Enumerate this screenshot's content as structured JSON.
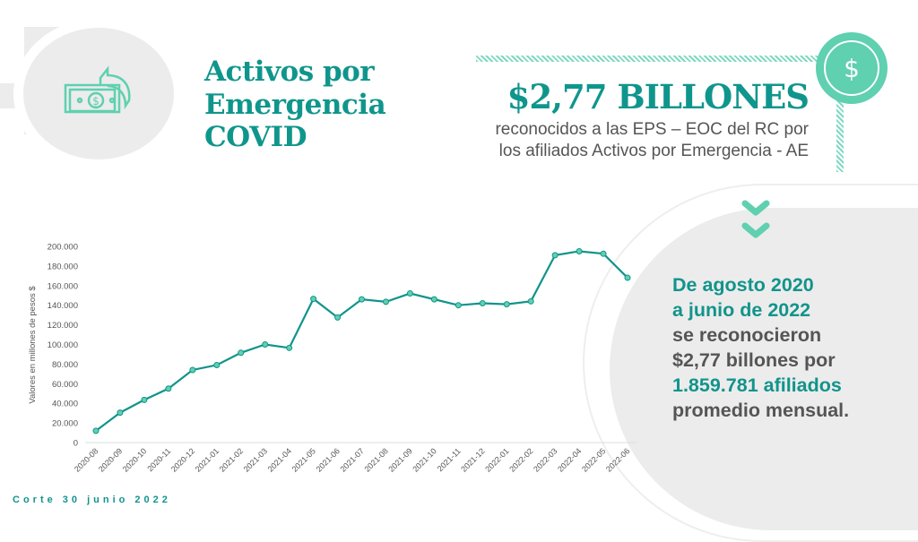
{
  "header": {
    "title_lines": [
      "Activos por",
      "Emergencia",
      "COVID"
    ],
    "icon": "money-return-icon"
  },
  "highlight": {
    "amount": "$2,77 BILLONES",
    "subtitle_lines": [
      "reconocidos a las EPS – EOC del RC por",
      "los afiliados Activos por Emergencia - AE"
    ],
    "icon": "dollar-coin-icon"
  },
  "summary": {
    "lines": [
      "De agosto 2020",
      "a junio de 2022",
      "se reconocieron",
      "$2,77 billones por",
      "1.859.781 afiliados",
      "promedio mensual."
    ],
    "icon": "double-chevron-down-icon"
  },
  "footer": {
    "note": "Corte 30 junio 2022"
  },
  "colors": {
    "accent": "#11948b",
    "light_accent": "#5fd0b0",
    "gray": "#ececec"
  },
  "chart_data": {
    "type": "line",
    "title": "",
    "xlabel": "",
    "ylabel": "Valores en millones de pesos $",
    "ylim": [
      0,
      200000
    ],
    "yticks": [
      "0",
      "20.000",
      "40.000",
      "60.000",
      "80.000",
      "100.000",
      "120.000",
      "140.000",
      "160.000",
      "180.000",
      "200.000"
    ],
    "grid": false,
    "categories": [
      "2020-08",
      "2020-09",
      "2020-10",
      "2020-11",
      "2020-12",
      "2021-01",
      "2021-02",
      "2021-03",
      "2021-04",
      "2021-05",
      "2021-06",
      "2021-07",
      "2021-08",
      "2021-09",
      "2021-10",
      "2021-11",
      "2021-12",
      "2022-01",
      "2022-02",
      "2022-03",
      "2022-04",
      "2022-05",
      "2022-06"
    ],
    "values": [
      12000,
      30500,
      43500,
      55000,
      74000,
      79000,
      91500,
      100000,
      96500,
      146500,
      127500,
      146000,
      143500,
      152000,
      146000,
      140000,
      142000,
      141000,
      144000,
      191000,
      195000,
      192500,
      168000
    ],
    "color": "#11948b"
  }
}
